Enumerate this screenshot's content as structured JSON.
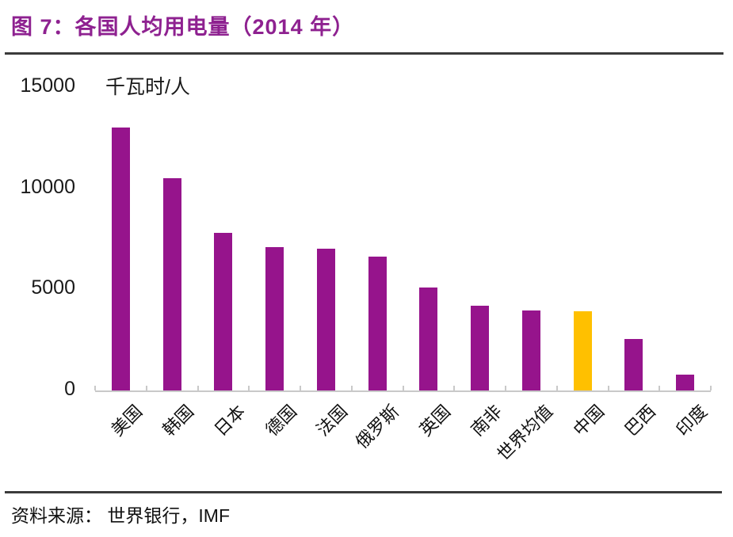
{
  "header": {
    "title": "图 7：各国人均用电量（2014 年）"
  },
  "chart_data": {
    "type": "bar",
    "title": "各国人均用电量（2014 年）",
    "unit_label": "千瓦时/人",
    "categories": [
      "美国",
      "韩国",
      "日本",
      "德国",
      "法国",
      "俄罗斯",
      "英国",
      "南非",
      "世界均值",
      "中国",
      "巴西",
      "印度"
    ],
    "values": [
      13000,
      10500,
      7800,
      7100,
      7000,
      6600,
      5100,
      4200,
      3950,
      3900,
      2550,
      800
    ],
    "ylabel": "千瓦时/人",
    "xlabel": "",
    "ylim": [
      0,
      15000
    ],
    "yticks": [
      0,
      5000,
      10000,
      15000
    ],
    "grid": false,
    "legend": "none",
    "bar_color": "#96148C",
    "highlight_category": "中国",
    "highlight_color": "#FFC000",
    "axis_color": "#C9C9C9",
    "title_color": "#8E2190"
  },
  "footer": {
    "source": "资料来源： 世界银行，IMF"
  }
}
